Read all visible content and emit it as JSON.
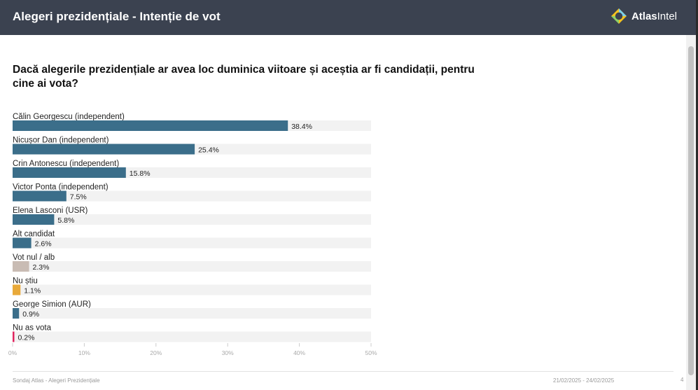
{
  "header": {
    "title": "Alegeri prezidențiale - Intenție de vot"
  },
  "logo": {
    "brand_bold": "Atlas",
    "brand_light": "Intel",
    "icon": "atlasintel-logo-icon"
  },
  "question": "Dacă alegerile prezidențiale ar avea loc duminica viitoare și aceștia ar fi candidații, pentru cine ai vota?",
  "chart_data": {
    "type": "bar",
    "orientation": "horizontal",
    "categories": [
      "Călin Georgescu (independent)",
      "Nicușor Dan (independent)",
      "Crin Antonescu (independent)",
      "Victor Ponta (independent)",
      "Elena Lasconi (USR)",
      "Alt candidat",
      "Vot nul / alb",
      "Nu știu",
      "George Simion (AUR)",
      "Nu as vota"
    ],
    "values": [
      38.4,
      25.4,
      15.8,
      7.5,
      5.8,
      2.6,
      2.3,
      1.1,
      0.9,
      0.2
    ],
    "value_labels": [
      "38.4%",
      "25.4%",
      "15.8%",
      "7.5%",
      "5.8%",
      "2.6%",
      "2.3%",
      "1.1%",
      "0.9%",
      "0.2%"
    ],
    "colors": [
      "#3b6e8a",
      "#3b6e8a",
      "#3b6e8a",
      "#3b6e8a",
      "#3b6e8a",
      "#3b6e8a",
      "#c9bcb4",
      "#e8a93a",
      "#3b6e8a",
      "#e0245e"
    ],
    "xlim": [
      0,
      50
    ],
    "x_ticks": [
      0,
      10,
      20,
      30,
      40,
      50
    ],
    "x_tick_labels": [
      "0%",
      "10%",
      "20%",
      "30%",
      "40%",
      "50%"
    ],
    "track_color": "#f2f2f2",
    "grid": false,
    "legend": "none"
  },
  "footer": {
    "source": "Sondaj Atlas - Alegeri Prezidențiale",
    "dates": "21/02/2025 - 24/02/2025",
    "page": "4"
  }
}
